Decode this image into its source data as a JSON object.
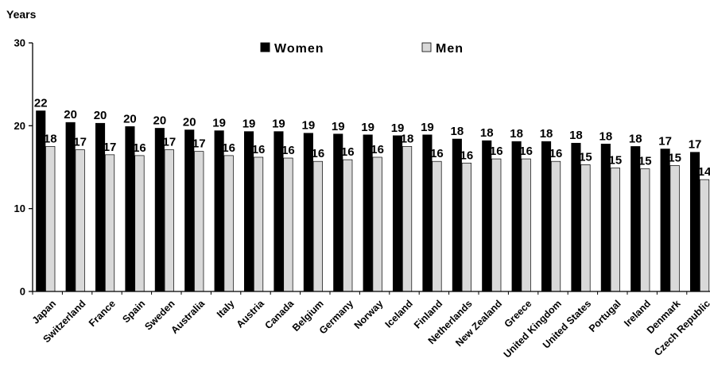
{
  "chart_data": {
    "type": "bar",
    "ylabel": "Years",
    "ylim": [
      0,
      30
    ],
    "yticks": [
      0,
      10,
      20,
      30
    ],
    "grid": false,
    "legend_position": "top-center",
    "categories": [
      "Japan",
      "Switzerland",
      "France",
      "Spain",
      "Sweden",
      "Australia",
      "Italy",
      "Austria",
      "Canada",
      "Belgium",
      "Germany",
      "Norway",
      "Iceland",
      "Finland",
      "Netherlands",
      "New Zealand",
      "Greece",
      "United Kingdom",
      "United States",
      "Portugal",
      "Ireland",
      "Denmark",
      "Czech Republic"
    ],
    "series": [
      {
        "name": "Women",
        "color": "#000000",
        "values": [
          21.8,
          20.4,
          20.3,
          19.9,
          19.7,
          19.5,
          19.4,
          19.3,
          19.3,
          19.1,
          19.0,
          18.9,
          18.8,
          18.9,
          18.4,
          18.2,
          18.1,
          18.1,
          17.9,
          17.8,
          17.5,
          17.2,
          16.8
        ],
        "labels": [
          "22",
          "20",
          "20",
          "20",
          "20",
          "20",
          "19",
          "19",
          "19",
          "19",
          "19",
          "19",
          "19",
          "19",
          "18",
          "18",
          "18",
          "18",
          "18",
          "18",
          "18",
          "17",
          "17"
        ]
      },
      {
        "name": "Men",
        "color": "#d9d9d9",
        "values": [
          17.5,
          17.1,
          16.5,
          16.4,
          17.1,
          16.9,
          16.4,
          16.2,
          16.1,
          15.7,
          15.9,
          16.2,
          17.5,
          15.7,
          15.5,
          16.0,
          16.0,
          15.7,
          15.3,
          14.9,
          14.8,
          15.2,
          13.5
        ],
        "labels": [
          "18",
          "17",
          "17",
          "16",
          "17",
          "17",
          "16",
          "16",
          "16",
          "16",
          "16",
          "16",
          "18",
          "16",
          "16",
          "16",
          "16",
          "16",
          "15",
          "15",
          "15",
          "15",
          "14"
        ]
      }
    ]
  }
}
